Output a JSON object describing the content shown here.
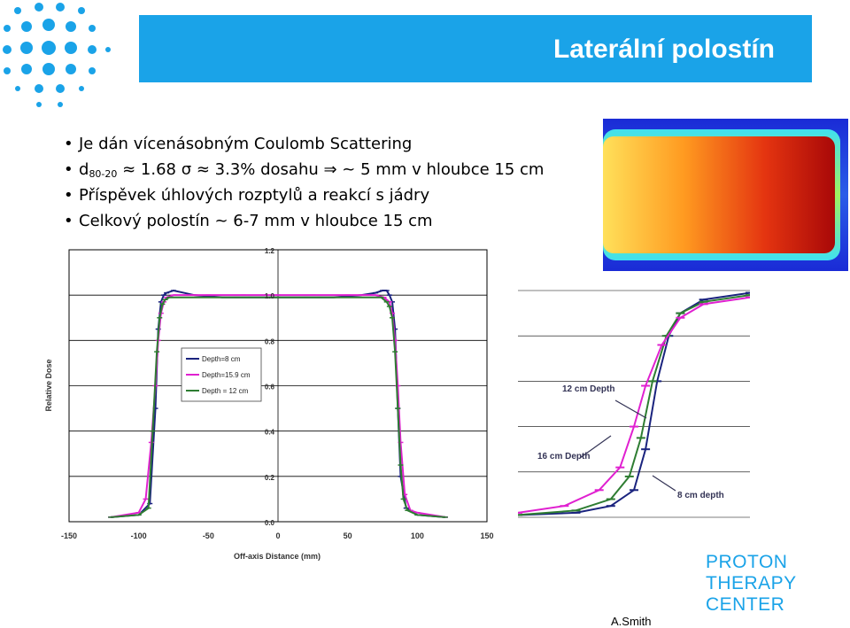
{
  "slide": {
    "title": "Laterální polostín",
    "bullets": {
      "b1": "Je dán vícenásobným Coulomb Scattering",
      "b2_pre": "d",
      "b2_sub": "80-20",
      "b2_post": " ≈ 1.68 σ ≈ 3.3% dosahu ⇒ ~ 5 mm v hloubce 15 cm",
      "b3": "Příspěvek úhlových rozptylů a reakcí s jádry",
      "b4": "Celkový polostín ~ 6-7 mm v hloubce 15 cm"
    },
    "logo": {
      "line1": "PROTON",
      "line2": "THERAPY",
      "line3": "CENTER"
    },
    "author": "A.Smith",
    "colors": {
      "title_bar": "#1aa3e8",
      "logo_text": "#1aa3e8"
    }
  },
  "chart_data": [
    {
      "type": "line",
      "xlabel": "Off-axis Distance (mm)",
      "ylabel": "Relative Dose",
      "xlim": [
        -150,
        150
      ],
      "ylim": [
        0,
        1.2
      ],
      "x_ticks": [
        "-150",
        "-100",
        "-50",
        "0",
        "50",
        "100",
        "150"
      ],
      "y_ticks": [
        "0.0",
        "0.2",
        "0.4",
        "0.6",
        "0.8",
        "1.0",
        "1.2"
      ],
      "grid": true,
      "legend_position": "center-left",
      "series": [
        {
          "name": "Depth=8 cm",
          "color": "#1a237e",
          "x": [
            -120,
            -100,
            -92,
            -88,
            -86,
            -84,
            -82,
            -80,
            -75,
            -60,
            -40,
            -20,
            0,
            20,
            40,
            60,
            70,
            75,
            78,
            80,
            82,
            84,
            86,
            88,
            92,
            100,
            120
          ],
          "y": [
            0.02,
            0.03,
            0.08,
            0.5,
            0.85,
            0.97,
            1.0,
            1.01,
            1.02,
            1.0,
            0.99,
            0.99,
            0.99,
            0.99,
            0.99,
            1.0,
            1.01,
            1.02,
            1.02,
            1.0,
            0.97,
            0.85,
            0.5,
            0.2,
            0.06,
            0.03,
            0.02
          ]
        },
        {
          "name": "Depth=15.9 cm",
          "color": "#e020d0",
          "x": [
            -120,
            -100,
            -95,
            -91,
            -88,
            -86,
            -84,
            -82,
            -80,
            -75,
            -50,
            -25,
            0,
            25,
            50,
            70,
            76,
            80,
            82,
            84,
            86,
            88,
            91,
            95,
            100,
            120
          ],
          "y": [
            0.02,
            0.04,
            0.1,
            0.35,
            0.6,
            0.8,
            0.92,
            0.97,
            0.99,
            1.0,
            1.0,
            1.0,
            1.0,
            1.0,
            1.0,
            1.0,
            0.99,
            0.97,
            0.92,
            0.8,
            0.6,
            0.35,
            0.12,
            0.05,
            0.04,
            0.02
          ]
        },
        {
          "name": "Depth = 12 cm",
          "color": "#2e7d32",
          "x": [
            -120,
            -100,
            -93,
            -90,
            -87,
            -85,
            -83,
            -81,
            -78,
            -60,
            -30,
            0,
            30,
            60,
            74,
            78,
            80,
            82,
            84,
            86,
            88,
            90,
            93,
            100,
            120
          ],
          "y": [
            0.02,
            0.03,
            0.06,
            0.4,
            0.75,
            0.9,
            0.96,
            0.98,
            0.99,
            0.99,
            0.99,
            0.99,
            0.99,
            0.99,
            0.99,
            0.97,
            0.95,
            0.9,
            0.75,
            0.5,
            0.25,
            0.1,
            0.05,
            0.03,
            0.02
          ]
        }
      ]
    },
    {
      "type": "line",
      "annotations": [
        "12 cm Depth",
        "16 cm Depth",
        "8 cm depth"
      ],
      "series": [
        {
          "name": "8 cm depth",
          "color": "#1a237e",
          "x": [
            0,
            0.25,
            0.4,
            0.5,
            0.55,
            0.6,
            0.65,
            0.7,
            0.8,
            1.0
          ],
          "y": [
            0.01,
            0.02,
            0.05,
            0.12,
            0.3,
            0.6,
            0.8,
            0.9,
            0.96,
            0.99
          ]
        },
        {
          "name": "12 cm Depth",
          "color": "#2e7d32",
          "x": [
            0,
            0.25,
            0.4,
            0.48,
            0.53,
            0.58,
            0.64,
            0.7,
            0.8,
            1.0
          ],
          "y": [
            0.01,
            0.03,
            0.08,
            0.18,
            0.35,
            0.6,
            0.8,
            0.9,
            0.95,
            0.98
          ]
        },
        {
          "name": "16 cm Depth",
          "color": "#e020d0",
          "x": [
            0,
            0.2,
            0.35,
            0.44,
            0.5,
            0.55,
            0.62,
            0.7,
            0.8,
            1.0
          ],
          "y": [
            0.02,
            0.05,
            0.12,
            0.22,
            0.4,
            0.58,
            0.76,
            0.88,
            0.94,
            0.97
          ]
        }
      ]
    }
  ]
}
